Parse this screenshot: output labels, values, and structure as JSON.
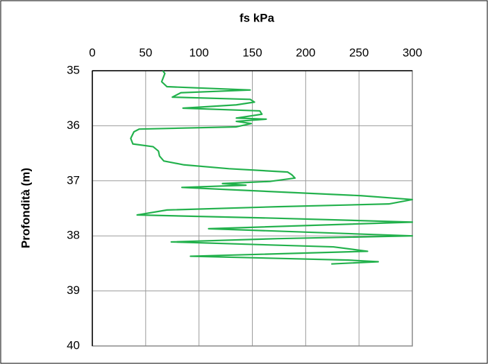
{
  "chart_data": {
    "type": "line",
    "title": "fs kPa",
    "y_label": "Profondità (m)",
    "xlim": [
      0,
      300
    ],
    "xticks": [
      0,
      50,
      100,
      150,
      200,
      250,
      300
    ],
    "ylim": [
      35,
      40
    ],
    "yticks": [
      35,
      36,
      37,
      38,
      39,
      40
    ],
    "y_inverted": true,
    "grid": true,
    "series": [
      {
        "color": "#22b14c",
        "x": [
          66,
          68,
          65,
          70,
          148,
          83,
          75,
          148,
          152,
          135,
          85,
          157,
          159,
          135,
          163,
          135,
          149,
          135,
          44,
          39,
          36,
          38,
          57,
          62,
          63,
          67,
          86,
          128,
          183,
          187,
          190,
          167,
          122,
          144,
          84,
          128,
          252,
          300,
          278,
          174,
          70,
          42,
          174,
          300,
          109,
          300,
          174,
          74,
          226,
          258,
          92,
          240,
          268,
          224
        ],
        "y": [
          35.0,
          35.05,
          35.2,
          35.29,
          35.35,
          35.4,
          35.48,
          35.52,
          35.57,
          35.62,
          35.68,
          35.73,
          35.79,
          35.86,
          35.88,
          35.92,
          35.96,
          36.02,
          36.06,
          36.11,
          36.23,
          36.33,
          36.38,
          36.46,
          36.55,
          36.64,
          36.71,
          36.78,
          36.84,
          36.89,
          36.95,
          37.01,
          37.05,
          37.08,
          37.12,
          37.16,
          37.27,
          37.34,
          37.42,
          37.47,
          37.53,
          37.62,
          37.68,
          37.75,
          37.87,
          38.0,
          38.05,
          38.11,
          38.2,
          38.28,
          38.37,
          38.44,
          38.47,
          38.51
        ]
      }
    ]
  }
}
